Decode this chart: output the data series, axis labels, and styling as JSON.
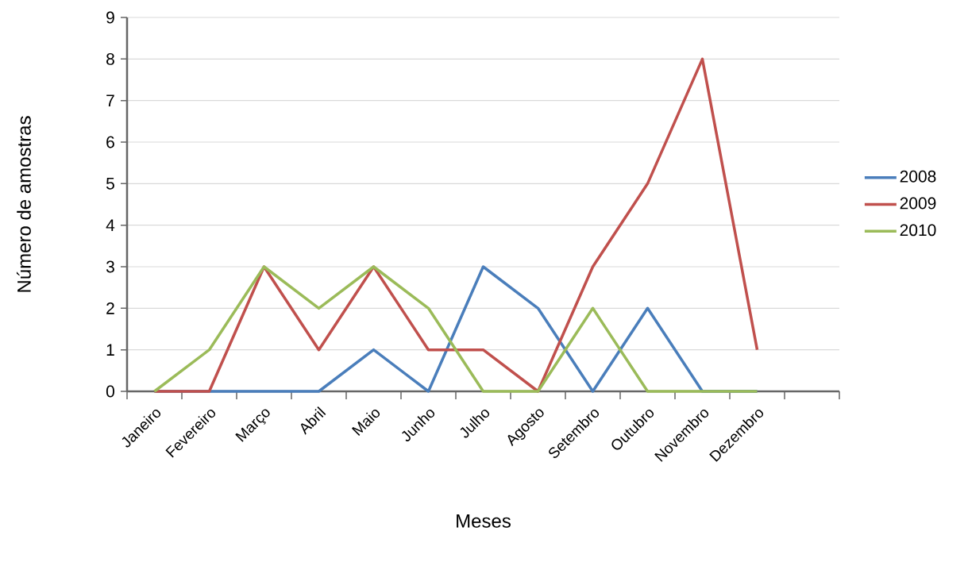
{
  "chart_data": {
    "type": "line",
    "xlabel": "Meses",
    "ylabel": "Número de amostras",
    "categories": [
      "Janeiro",
      "Fevereiro",
      "Março",
      "Abril",
      "Maio",
      "Junho",
      "Julho",
      "Agosto",
      "Setembro",
      "Outubro",
      "Novembro",
      "Dezembro",
      null
    ],
    "series": [
      {
        "name": "2008",
        "color": "#4a7ebb",
        "values": [
          0,
          0,
          0,
          0,
          1,
          0,
          3,
          2,
          0,
          2,
          0,
          0,
          null
        ]
      },
      {
        "name": "2009",
        "color": "#c0504d",
        "values": [
          0,
          0,
          3,
          1,
          3,
          1,
          1,
          0,
          3,
          5,
          8,
          1,
          null
        ]
      },
      {
        "name": "2010",
        "color": "#9bbb59",
        "values": [
          0,
          1,
          3,
          2,
          3,
          2,
          0,
          0,
          2,
          0,
          0,
          0,
          null
        ]
      }
    ],
    "ylim": [
      0,
      9
    ],
    "yticks": [
      0,
      1,
      2,
      3,
      4,
      5,
      6,
      7,
      8,
      9
    ],
    "grid": "y",
    "legend": "right"
  }
}
